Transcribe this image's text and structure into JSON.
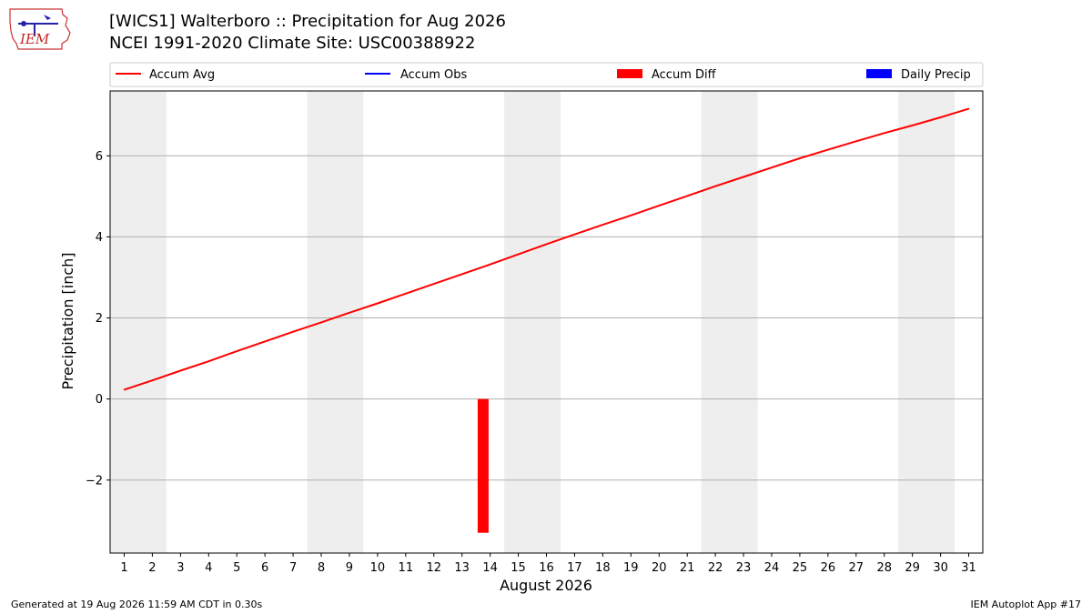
{
  "logo_text": "IEM",
  "header": {
    "title": "[WICS1] Walterboro :: Precipitation for Aug 2026",
    "subtitle": "NCEI 1991-2020 Climate Site: USC00388922"
  },
  "footer": {
    "left": "Generated at 19 Aug 2026 11:59 AM CDT in 0.30s",
    "right": "IEM Autoplot App #17"
  },
  "colors": {
    "accum_avg": "#ff0000",
    "accum_obs": "#0000ff",
    "accum_diff": "#ff0000",
    "daily_precip": "#0000ff",
    "weekend_shade": "#eeeeee",
    "grid": "#b0b0b0"
  },
  "chart_data": {
    "type": "line",
    "xlabel": "August 2026",
    "ylabel": "Precipitation [inch]",
    "xlim": [
      0.5,
      31.5
    ],
    "ylim": [
      -3.8,
      7.6
    ],
    "yticks": [
      -2,
      0,
      2,
      4,
      6
    ],
    "ytick_labels": [
      "−2",
      "0",
      "2",
      "4",
      "6"
    ],
    "x": [
      1,
      2,
      3,
      4,
      5,
      6,
      7,
      8,
      9,
      10,
      11,
      12,
      13,
      14,
      15,
      16,
      17,
      18,
      19,
      20,
      21,
      22,
      23,
      24,
      25,
      26,
      27,
      28,
      29,
      30,
      31
    ],
    "xtick_labels": [
      "1",
      "2",
      "3",
      "4",
      "5",
      "6",
      "7",
      "8",
      "9",
      "10",
      "11",
      "12",
      "13",
      "14",
      "15",
      "16",
      "17",
      "18",
      "19",
      "20",
      "21",
      "22",
      "23",
      "24",
      "25",
      "26",
      "27",
      "28",
      "29",
      "30",
      "31"
    ],
    "weekends": [
      [
        1,
        2
      ],
      [
        8,
        9
      ],
      [
        15,
        16
      ],
      [
        22,
        23
      ],
      [
        29,
        30
      ]
    ],
    "legend_placement": "top",
    "legend": [
      "Accum Avg",
      "Accum Obs",
      "Accum Diff",
      "Daily Precip"
    ],
    "series": [
      {
        "name": "Accum Avg",
        "kind": "line",
        "x": [
          1,
          2,
          3,
          4,
          5,
          6,
          7,
          8,
          9,
          10,
          11,
          12,
          13,
          14,
          15,
          16,
          17,
          18,
          19,
          20,
          21,
          22,
          23,
          24,
          25,
          26,
          27,
          28,
          29,
          30,
          31
        ],
        "values": [
          0.23,
          0.46,
          0.7,
          0.93,
          1.18,
          1.42,
          1.66,
          1.89,
          2.13,
          2.36,
          2.6,
          2.84,
          3.08,
          3.32,
          3.57,
          3.82,
          4.06,
          4.3,
          4.53,
          4.77,
          5.01,
          5.25,
          5.48,
          5.71,
          5.94,
          6.15,
          6.36,
          6.56,
          6.75,
          6.95,
          7.16
        ]
      },
      {
        "name": "Accum Diff",
        "kind": "bar",
        "x": [
          13.75
        ],
        "values": [
          -3.3
        ]
      }
    ]
  }
}
